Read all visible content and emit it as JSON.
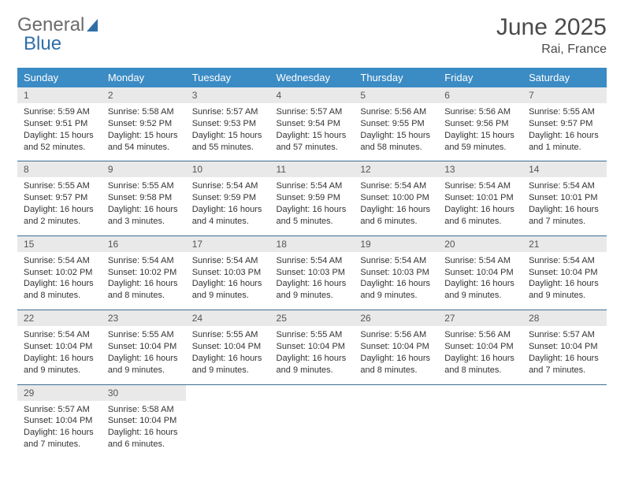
{
  "brand": {
    "part1": "General",
    "part2": "Blue"
  },
  "title": "June 2025",
  "location": "Rai, France",
  "header_bg": "#3b8bc4",
  "daynum_bg": "#e9e9e9",
  "row_border": "#3b6d94",
  "weekdays": [
    "Sunday",
    "Monday",
    "Tuesday",
    "Wednesday",
    "Thursday",
    "Friday",
    "Saturday"
  ],
  "weeks": [
    [
      {
        "n": 1,
        "sr": "5:59 AM",
        "ss": "9:51 PM",
        "dl": "15 hours and 52 minutes."
      },
      {
        "n": 2,
        "sr": "5:58 AM",
        "ss": "9:52 PM",
        "dl": "15 hours and 54 minutes."
      },
      {
        "n": 3,
        "sr": "5:57 AM",
        "ss": "9:53 PM",
        "dl": "15 hours and 55 minutes."
      },
      {
        "n": 4,
        "sr": "5:57 AM",
        "ss": "9:54 PM",
        "dl": "15 hours and 57 minutes."
      },
      {
        "n": 5,
        "sr": "5:56 AM",
        "ss": "9:55 PM",
        "dl": "15 hours and 58 minutes."
      },
      {
        "n": 6,
        "sr": "5:56 AM",
        "ss": "9:56 PM",
        "dl": "15 hours and 59 minutes."
      },
      {
        "n": 7,
        "sr": "5:55 AM",
        "ss": "9:57 PM",
        "dl": "16 hours and 1 minute."
      }
    ],
    [
      {
        "n": 8,
        "sr": "5:55 AM",
        "ss": "9:57 PM",
        "dl": "16 hours and 2 minutes."
      },
      {
        "n": 9,
        "sr": "5:55 AM",
        "ss": "9:58 PM",
        "dl": "16 hours and 3 minutes."
      },
      {
        "n": 10,
        "sr": "5:54 AM",
        "ss": "9:59 PM",
        "dl": "16 hours and 4 minutes."
      },
      {
        "n": 11,
        "sr": "5:54 AM",
        "ss": "9:59 PM",
        "dl": "16 hours and 5 minutes."
      },
      {
        "n": 12,
        "sr": "5:54 AM",
        "ss": "10:00 PM",
        "dl": "16 hours and 6 minutes."
      },
      {
        "n": 13,
        "sr": "5:54 AM",
        "ss": "10:01 PM",
        "dl": "16 hours and 6 minutes."
      },
      {
        "n": 14,
        "sr": "5:54 AM",
        "ss": "10:01 PM",
        "dl": "16 hours and 7 minutes."
      }
    ],
    [
      {
        "n": 15,
        "sr": "5:54 AM",
        "ss": "10:02 PM",
        "dl": "16 hours and 8 minutes."
      },
      {
        "n": 16,
        "sr": "5:54 AM",
        "ss": "10:02 PM",
        "dl": "16 hours and 8 minutes."
      },
      {
        "n": 17,
        "sr": "5:54 AM",
        "ss": "10:03 PM",
        "dl": "16 hours and 9 minutes."
      },
      {
        "n": 18,
        "sr": "5:54 AM",
        "ss": "10:03 PM",
        "dl": "16 hours and 9 minutes."
      },
      {
        "n": 19,
        "sr": "5:54 AM",
        "ss": "10:03 PM",
        "dl": "16 hours and 9 minutes."
      },
      {
        "n": 20,
        "sr": "5:54 AM",
        "ss": "10:04 PM",
        "dl": "16 hours and 9 minutes."
      },
      {
        "n": 21,
        "sr": "5:54 AM",
        "ss": "10:04 PM",
        "dl": "16 hours and 9 minutes."
      }
    ],
    [
      {
        "n": 22,
        "sr": "5:54 AM",
        "ss": "10:04 PM",
        "dl": "16 hours and 9 minutes."
      },
      {
        "n": 23,
        "sr": "5:55 AM",
        "ss": "10:04 PM",
        "dl": "16 hours and 9 minutes."
      },
      {
        "n": 24,
        "sr": "5:55 AM",
        "ss": "10:04 PM",
        "dl": "16 hours and 9 minutes."
      },
      {
        "n": 25,
        "sr": "5:55 AM",
        "ss": "10:04 PM",
        "dl": "16 hours and 9 minutes."
      },
      {
        "n": 26,
        "sr": "5:56 AM",
        "ss": "10:04 PM",
        "dl": "16 hours and 8 minutes."
      },
      {
        "n": 27,
        "sr": "5:56 AM",
        "ss": "10:04 PM",
        "dl": "16 hours and 8 minutes."
      },
      {
        "n": 28,
        "sr": "5:57 AM",
        "ss": "10:04 PM",
        "dl": "16 hours and 7 minutes."
      }
    ],
    [
      {
        "n": 29,
        "sr": "5:57 AM",
        "ss": "10:04 PM",
        "dl": "16 hours and 7 minutes."
      },
      {
        "n": 30,
        "sr": "5:58 AM",
        "ss": "10:04 PM",
        "dl": "16 hours and 6 minutes."
      },
      null,
      null,
      null,
      null,
      null
    ]
  ],
  "labels": {
    "sunrise": "Sunrise:",
    "sunset": "Sunset:",
    "daylight": "Daylight:"
  }
}
